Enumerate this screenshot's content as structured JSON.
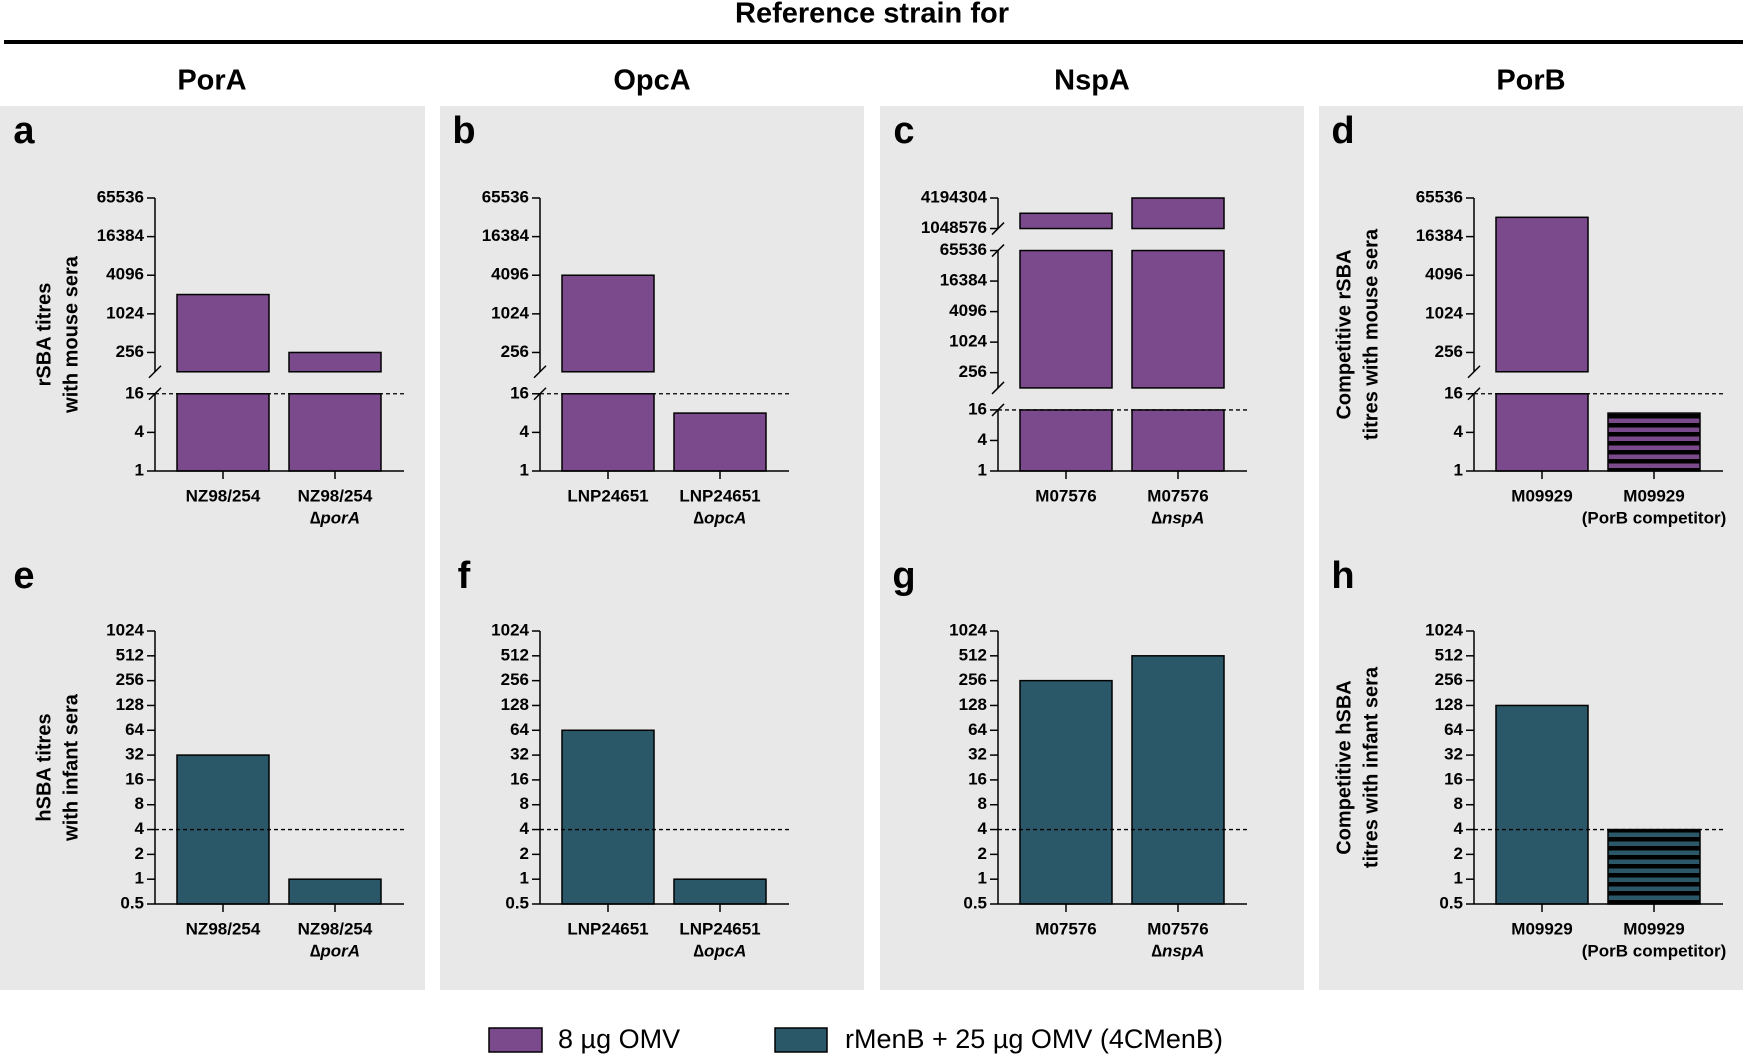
{
  "header": {
    "title": "Reference strain for",
    "columns": [
      "PorA",
      "OpcA",
      "NspA",
      "PorB"
    ]
  },
  "legend": [
    {
      "name": "8 µg OMV",
      "color": "#7b4a8c"
    },
    {
      "name": "rMenB + 25 µg OMV (4CMenB)",
      "color": "#2b5868"
    }
  ],
  "chart_data": [
    {
      "type": "bar",
      "label": "a",
      "ylabel": [
        "rSBA titres",
        "with mouse sera"
      ],
      "categories": [
        [
          "NZ98/254"
        ],
        [
          "NZ98/254",
          "∆porA"
        ]
      ],
      "values": [
        2048,
        256
      ],
      "hatch": [
        false,
        false
      ],
      "color": "#7b4a8c",
      "log_base": 2,
      "ylim": [
        1,
        65536
      ],
      "ybreaks": [
        [
          16,
          128
        ]
      ],
      "yticks": [
        1,
        4,
        16,
        256,
        1024,
        4096,
        16384,
        65536
      ],
      "reference_line": 16
    },
    {
      "type": "bar",
      "label": "b",
      "categories": [
        [
          "LNP24651"
        ],
        [
          "LNP24651",
          "∆opcA"
        ]
      ],
      "values": [
        4096,
        8
      ],
      "hatch": [
        false,
        false
      ],
      "color": "#7b4a8c",
      "log_base": 2,
      "ylim": [
        1,
        65536
      ],
      "ybreaks": [
        [
          16,
          128
        ]
      ],
      "yticks": [
        1,
        4,
        16,
        256,
        1024,
        4096,
        16384,
        65536
      ],
      "reference_line": 16
    },
    {
      "type": "bar",
      "label": "c",
      "categories": [
        [
          "M07576"
        ],
        [
          "M07576",
          "∆nspA"
        ]
      ],
      "values": [
        2097152,
        4194304
      ],
      "hatch": [
        false,
        false
      ],
      "color": "#7b4a8c",
      "log_base": 2,
      "ylim": [
        1,
        4194304
      ],
      "ybreaks": [
        [
          16,
          128
        ],
        [
          65536,
          1048576
        ]
      ],
      "yticks": [
        1,
        4,
        16,
        256,
        1024,
        4096,
        16384,
        65536,
        1048576,
        4194304
      ],
      "reference_line": 16
    },
    {
      "type": "bar",
      "label": "d",
      "ylabel": [
        "Competitive rSBA",
        "titres with mouse sera"
      ],
      "categories": [
        [
          "M09929"
        ],
        [
          "M09929",
          "(PorB competitor)"
        ]
      ],
      "values": [
        32768,
        8
      ],
      "hatch": [
        false,
        true
      ],
      "color": "#7b4a8c",
      "log_base": 2,
      "ylim": [
        1,
        65536
      ],
      "ybreaks": [
        [
          16,
          128
        ]
      ],
      "yticks": [
        1,
        4,
        16,
        256,
        1024,
        4096,
        16384,
        65536
      ],
      "reference_line": 16
    },
    {
      "type": "bar",
      "label": "e",
      "ylabel": [
        "hSBA titres",
        "with infant sera"
      ],
      "categories": [
        [
          "NZ98/254"
        ],
        [
          "NZ98/254",
          "∆porA"
        ]
      ],
      "values": [
        32,
        1
      ],
      "hatch": [
        false,
        false
      ],
      "color": "#2b5868",
      "log_base": 2,
      "ylim": [
        0.5,
        1024
      ],
      "yticks": [
        0.5,
        1,
        2,
        4,
        8,
        16,
        32,
        64,
        128,
        256,
        512,
        1024
      ],
      "reference_line": 4
    },
    {
      "type": "bar",
      "label": "f",
      "categories": [
        [
          "LNP24651"
        ],
        [
          "LNP24651",
          "∆opcA"
        ]
      ],
      "values": [
        64,
        1
      ],
      "hatch": [
        false,
        false
      ],
      "color": "#2b5868",
      "log_base": 2,
      "ylim": [
        0.5,
        1024
      ],
      "yticks": [
        0.5,
        1,
        2,
        4,
        8,
        16,
        32,
        64,
        128,
        256,
        512,
        1024
      ],
      "reference_line": 4
    },
    {
      "type": "bar",
      "label": "g",
      "categories": [
        [
          "M07576"
        ],
        [
          "M07576",
          "∆nspA"
        ]
      ],
      "values": [
        256,
        512
      ],
      "hatch": [
        false,
        false
      ],
      "color": "#2b5868",
      "log_base": 2,
      "ylim": [
        0.5,
        1024
      ],
      "yticks": [
        0.5,
        1,
        2,
        4,
        8,
        16,
        32,
        64,
        128,
        256,
        512,
        1024
      ],
      "reference_line": 4
    },
    {
      "type": "bar",
      "label": "h",
      "ylabel": [
        "Competitive hSBA",
        "titres with infant sera"
      ],
      "categories": [
        [
          "M09929"
        ],
        [
          "M09929",
          "(PorB competitor)"
        ]
      ],
      "values": [
        128,
        4
      ],
      "hatch": [
        false,
        true
      ],
      "color": "#2b5868",
      "log_base": 2,
      "ylim": [
        0.5,
        1024
      ],
      "yticks": [
        0.5,
        1,
        2,
        4,
        8,
        16,
        32,
        64,
        128,
        256,
        512,
        1024
      ],
      "reference_line": 4
    }
  ]
}
